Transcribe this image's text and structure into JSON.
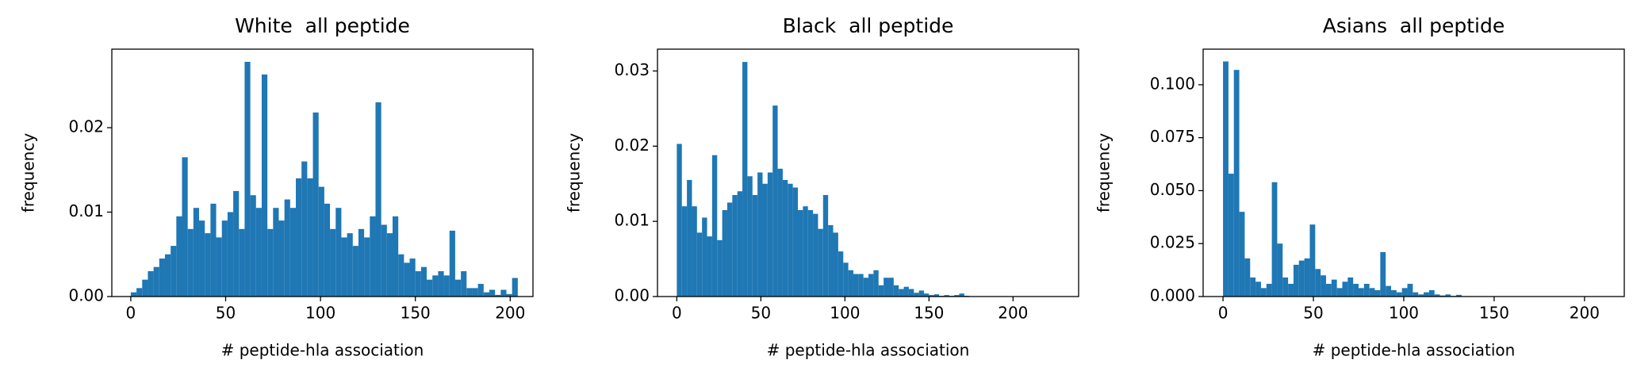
{
  "chart_data": [
    {
      "type": "histogram",
      "title": "White  all peptide",
      "xlabel": "# peptide-hla association",
      "ylabel": "frequency",
      "color": "#1f77b4",
      "bins": [
        0,
        3,
        6,
        9,
        12,
        15,
        18,
        21,
        24,
        27,
        30,
        33,
        36,
        39,
        42,
        45,
        48,
        51,
        54,
        57,
        60,
        63,
        66,
        69,
        72,
        75,
        78,
        81,
        84,
        87,
        90,
        93,
        96,
        99,
        102,
        105,
        108,
        111,
        114,
        117,
        120,
        123,
        126,
        129,
        132,
        135,
        138,
        141,
        144,
        147,
        150,
        153,
        156,
        159,
        162,
        165,
        168,
        171,
        174,
        177,
        180,
        183,
        186,
        189,
        192,
        195,
        198,
        201,
        204
      ],
      "values": [
        0.0005,
        0.001,
        0.002,
        0.003,
        0.0035,
        0.0045,
        0.005,
        0.006,
        0.0095,
        0.0165,
        0.008,
        0.0105,
        0.009,
        0.0075,
        0.011,
        0.007,
        0.009,
        0.01,
        0.0125,
        0.008,
        0.0278,
        0.012,
        0.0105,
        0.0263,
        0.008,
        0.0105,
        0.009,
        0.0115,
        0.0105,
        0.014,
        0.016,
        0.014,
        0.0218,
        0.013,
        0.011,
        0.008,
        0.0105,
        0.007,
        0.0075,
        0.006,
        0.008,
        0.007,
        0.0095,
        0.023,
        0.0085,
        0.0075,
        0.0095,
        0.005,
        0.004,
        0.0045,
        0.003,
        0.0035,
        0.002,
        0.0025,
        0.003,
        0.0025,
        0.0078,
        0.002,
        0.003,
        0.001,
        0.001,
        0.0015,
        0.0005,
        0.0008,
        0.0002,
        0.0008,
        0.0003,
        0.0022
      ],
      "xlim": [
        -10,
        212
      ],
      "xticks": [
        0,
        50,
        100,
        150,
        200
      ],
      "ylim": [
        0,
        0.0293
      ],
      "yticks": [
        {
          "value": 0,
          "label": "0.00"
        },
        0.01,
        0.02
      ]
    },
    {
      "type": "histogram",
      "title": "Black  all peptide",
      "xlabel": "# peptide-hla association",
      "ylabel": "frequency",
      "color": "#1f77b4",
      "bins": [
        0,
        3,
        6,
        9,
        12,
        15,
        18,
        21,
        24,
        27,
        30,
        33,
        36,
        39,
        42,
        45,
        48,
        51,
        54,
        57,
        60,
        63,
        66,
        69,
        72,
        75,
        78,
        81,
        84,
        87,
        90,
        93,
        96,
        99,
        102,
        105,
        108,
        111,
        114,
        117,
        120,
        123,
        126,
        129,
        132,
        135,
        138,
        141,
        144,
        147,
        150,
        153,
        156,
        159,
        162,
        165,
        168,
        171,
        174,
        177,
        180,
        183,
        186,
        189,
        192,
        195,
        198,
        201,
        204,
        207,
        210,
        213,
        216,
        219,
        222,
        225,
        228
      ],
      "values": [
        0.0203,
        0.012,
        0.0155,
        0.012,
        0.0085,
        0.0105,
        0.008,
        0.0188,
        0.0075,
        0.0115,
        0.0125,
        0.0135,
        0.014,
        0.0312,
        0.016,
        0.0135,
        0.0165,
        0.015,
        0.0165,
        0.0254,
        0.017,
        0.0155,
        0.015,
        0.0145,
        0.0115,
        0.012,
        0.0115,
        0.011,
        0.009,
        0.0135,
        0.0095,
        0.0085,
        0.006,
        0.0045,
        0.0035,
        0.003,
        0.003,
        0.0025,
        0.003,
        0.0035,
        0.0015,
        0.0025,
        0.0025,
        0.0015,
        0.001,
        0.0013,
        0.001,
        0.0005,
        0.0008,
        0.0004,
        0.0002,
        0.0003,
        0.0001,
        0.0002,
        0.0001,
        0.0002,
        0.0004,
        0.0001,
        0,
        0,
        0,
        0,
        0,
        0,
        0,
        0,
        0,
        0,
        0,
        0,
        0,
        0,
        0,
        0,
        0,
        0
      ],
      "xlim": [
        -11.5,
        239
      ],
      "xticks": [
        0,
        50,
        100,
        150,
        200
      ],
      "ylim": [
        0,
        0.0329
      ],
      "yticks": [
        {
          "value": 0,
          "label": "0.00"
        },
        0.01,
        0.02,
        0.03
      ]
    },
    {
      "type": "histogram",
      "title": "Asians  all peptide",
      "xlabel": "# peptide-hla association",
      "ylabel": "frequency",
      "color": "#1f77b4",
      "bins": [
        0,
        3,
        6,
        9,
        12,
        15,
        18,
        21,
        24,
        27,
        30,
        33,
        36,
        39,
        42,
        45,
        48,
        51,
        54,
        57,
        60,
        63,
        66,
        69,
        72,
        75,
        78,
        81,
        84,
        87,
        90,
        93,
        96,
        99,
        102,
        105,
        108,
        111,
        114,
        117,
        120,
        123,
        126,
        129,
        132,
        135,
        138,
        141,
        144,
        147,
        150,
        153,
        156,
        159,
        162,
        165,
        168,
        171,
        174,
        177,
        180,
        183,
        186,
        189,
        192,
        195,
        198,
        201,
        204,
        207,
        210,
        213
      ],
      "values": [
        0.111,
        0.058,
        0.107,
        0.04,
        0.018,
        0.009,
        0.007,
        0.004,
        0.006,
        0.054,
        0.025,
        0.009,
        0.006,
        0.015,
        0.017,
        0.018,
        0.034,
        0.013,
        0.01,
        0.006,
        0.008,
        0.004,
        0.007,
        0.009,
        0.006,
        0.004,
        0.006,
        0.004,
        0.003,
        0.021,
        0.005,
        0.003,
        0.002,
        0.004,
        0.006,
        0.002,
        0.001,
        0.002,
        0.003,
        0.001,
        0.0005,
        0.001,
        0.0003,
        0.0008,
        0.0002,
        0.0002,
        0.0001,
        0,
        0,
        0,
        0,
        0,
        0,
        0,
        0,
        0,
        0,
        0,
        0,
        0,
        0,
        0,
        0,
        0,
        0,
        0,
        0,
        0,
        0,
        0,
        0
      ],
      "xlim": [
        -11,
        222
      ],
      "xticks": [
        0,
        50,
        100,
        150,
        200
      ],
      "ylim": [
        0,
        0.1168
      ],
      "yticks": [
        {
          "value": 0,
          "label": "0.000"
        },
        0.025,
        {
          "value": 0.05,
          "label": "0.050"
        },
        {
          "value": 0.075,
          "label": "0.075"
        },
        {
          "value": 0.1,
          "label": "0.100"
        }
      ]
    }
  ]
}
